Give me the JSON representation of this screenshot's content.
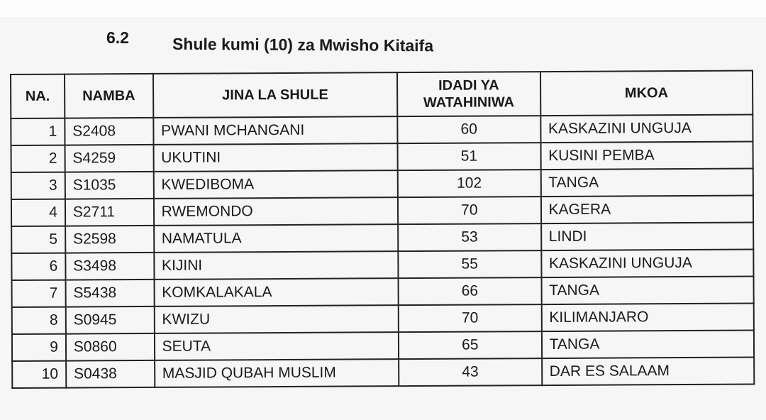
{
  "section": {
    "number": "6.2",
    "title": "Shule kumi (10) za Mwisho Kitaifa"
  },
  "table": {
    "headers": [
      "NA.",
      "NAMBA",
      "JINA LA SHULE",
      "IDADI YA WATAHINIWA",
      "MKOA"
    ],
    "rows": [
      [
        "1",
        "S2408",
        "PWANI MCHANGANI",
        "60",
        "KASKAZINI UNGUJA"
      ],
      [
        "2",
        "S4259",
        "UKUTINI",
        "51",
        "KUSINI PEMBA"
      ],
      [
        "3",
        "S1035",
        "KWEDIBOMA",
        "102",
        "TANGA"
      ],
      [
        "4",
        "S2711",
        "RWEMONDO",
        "70",
        "KAGERA"
      ],
      [
        "5",
        "S2598",
        "NAMATULA",
        "53",
        "LINDI"
      ],
      [
        "6",
        "S3498",
        "KIJINI",
        "55",
        "KASKAZINI UNGUJA"
      ],
      [
        "7",
        "S5438",
        "KOMKALAKALA",
        "66",
        "TANGA"
      ],
      [
        "8",
        "S0945",
        "KWIZU",
        "70",
        "KILIMANJARO"
      ],
      [
        "9",
        "S0860",
        "SEUTA",
        "65",
        "TANGA"
      ],
      [
        "10",
        "S0438",
        "MASJID QUBAH MUSLIM",
        "43",
        "DAR ES SALAAM"
      ]
    ]
  }
}
